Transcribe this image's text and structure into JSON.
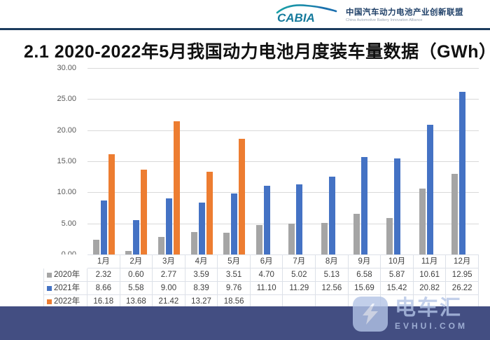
{
  "header": {
    "logo_text": "CABIA",
    "org_cn": "中国汽车动力电池产业创新联盟",
    "org_en": "China Automotive Battery Innovation Alliance"
  },
  "title": "2.1 2020-2022年5月我国动力电池月度装车量数据（GWh）",
  "chart_data": {
    "type": "bar",
    "title": "2020-2022年5月我国动力电池月度装车量数据（GWh）",
    "categories": [
      "1月",
      "2月",
      "3月",
      "4月",
      "5月",
      "6月",
      "7月",
      "8月",
      "9月",
      "10月",
      "11月",
      "12月"
    ],
    "series": [
      {
        "name": "2020年",
        "color": "#a5a5a5",
        "values": [
          2.32,
          0.6,
          2.77,
          3.59,
          3.51,
          4.7,
          5.02,
          5.13,
          6.58,
          5.87,
          10.61,
          12.95
        ]
      },
      {
        "name": "2021年",
        "color": "#4472c4",
        "values": [
          8.66,
          5.58,
          9.0,
          8.39,
          9.76,
          11.1,
          11.29,
          12.56,
          15.69,
          15.42,
          20.82,
          26.22
        ]
      },
      {
        "name": "2022年",
        "color": "#ed7d31",
        "values": [
          16.18,
          13.68,
          21.42,
          13.27,
          18.56,
          null,
          null,
          null,
          null,
          null,
          null,
          null
        ]
      }
    ],
    "ylim": [
      0,
      30
    ],
    "ytick_labels": [
      "30.00",
      "25.00",
      "20.00",
      "15.00",
      "10.00",
      "5.00",
      "0.00"
    ],
    "grid": "horizontal",
    "legend_position": "table-rows",
    "xlabel": "",
    "ylabel": ""
  },
  "colors": {
    "accent_rule": "#1c3c5e",
    "bottom_bar": "#434e82",
    "gridline": "#d9d9d9",
    "watermark": "#b3c4e6"
  },
  "watermark": {
    "name": "电车汇",
    "site": "EVHUI.COM"
  }
}
